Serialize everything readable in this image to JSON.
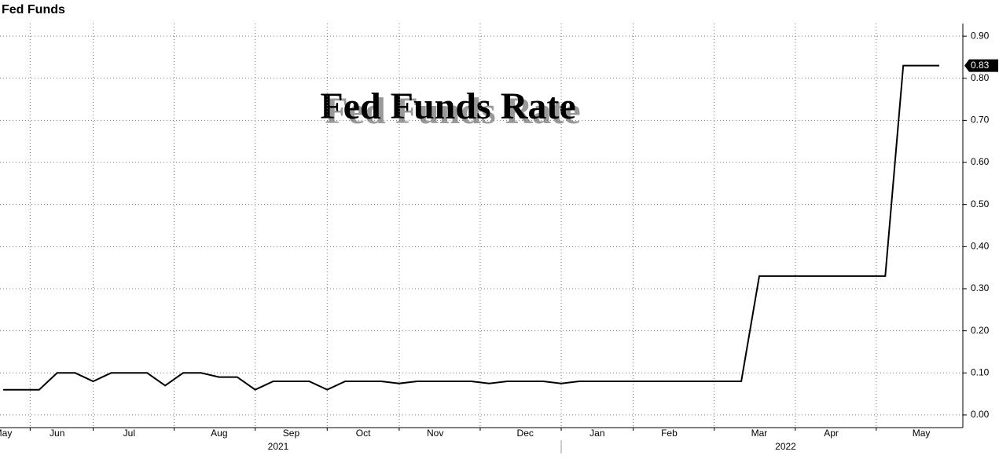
{
  "chart_data": {
    "type": "line",
    "title": "Fed Funds",
    "annotation": "Fed Funds Rate",
    "x_group_labels": [
      "2021",
      "2022"
    ],
    "categories": [
      "May",
      null,
      null,
      "Jun",
      null,
      null,
      null,
      "Jul",
      null,
      null,
      null,
      null,
      "Aug",
      null,
      null,
      null,
      "Sep",
      null,
      null,
      null,
      "Oct",
      null,
      null,
      null,
      "Nov",
      null,
      null,
      null,
      null,
      "Dec",
      null,
      null,
      null,
      "Jan",
      null,
      null,
      null,
      "Feb",
      null,
      null,
      null,
      null,
      "Mar",
      null,
      null,
      null,
      "Apr",
      null,
      null,
      null,
      null,
      "May",
      null
    ],
    "series": [
      {
        "name": "Fed Funds",
        "color": "#000000",
        "values": [
          0.06,
          0.06,
          0.06,
          0.1,
          0.1,
          0.08,
          0.1,
          0.1,
          0.1,
          0.07,
          0.1,
          0.1,
          0.09,
          0.09,
          0.06,
          0.08,
          0.08,
          0.08,
          0.06,
          0.08,
          0.08,
          0.08,
          0.075,
          0.08,
          0.08,
          0.08,
          0.08,
          0.075,
          0.08,
          0.08,
          0.08,
          0.075,
          0.08,
          0.08,
          0.08,
          0.08,
          0.08,
          0.08,
          0.08,
          0.08,
          0.08,
          0.08,
          0.33,
          0.33,
          0.33,
          0.33,
          0.33,
          0.33,
          0.33,
          0.33,
          0.83,
          0.83,
          0.83
        ]
      }
    ],
    "ylim": [
      -0.03,
      0.93
    ],
    "yticks": [
      {
        "value": 0,
        "label": "0.00"
      },
      {
        "value": 0.1,
        "label": "0.10"
      },
      {
        "value": 0.2,
        "label": "0.20"
      },
      {
        "value": 0.3,
        "label": "0.30"
      },
      {
        "value": 0.4,
        "label": "0.40"
      },
      {
        "value": 0.5,
        "label": "0.50"
      },
      {
        "value": 0.6,
        "label": "0.60"
      },
      {
        "value": 0.7,
        "label": "0.70"
      },
      {
        "value": 0.8,
        "label": "0.80"
      },
      {
        "value": 0.9,
        "label": "0.90"
      }
    ],
    "grid": true,
    "y_axis_side": "right"
  }
}
